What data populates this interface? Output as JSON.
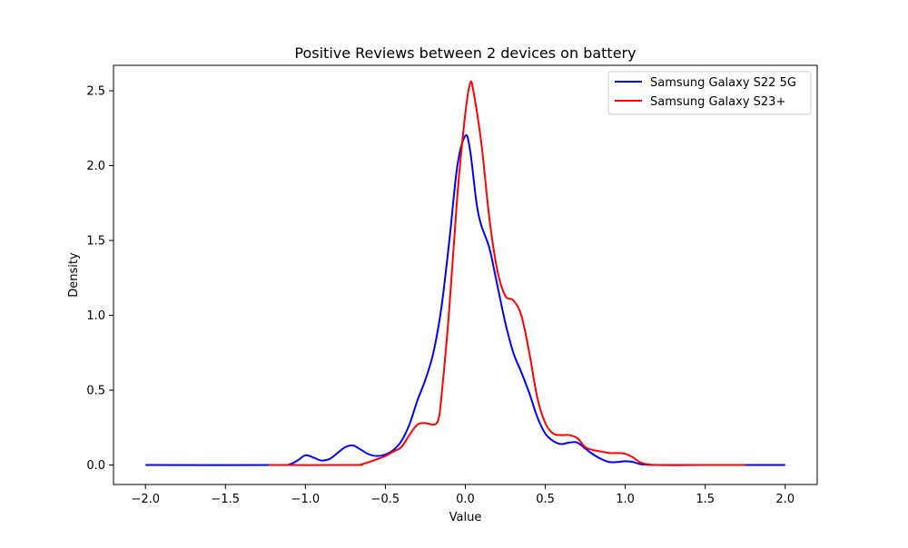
{
  "chart_data": {
    "type": "line",
    "title": "Positive Reviews between 2 devices on battery",
    "xlabel": "Value",
    "ylabel": "Density",
    "xlim": [
      -2.2,
      2.2
    ],
    "ylim": [
      -0.13,
      2.67
    ],
    "xticks": [
      -2.0,
      -1.5,
      -1.0,
      -0.5,
      0.0,
      0.5,
      1.0,
      1.5,
      2.0
    ],
    "xtick_labels": [
      "−2.0",
      "−1.5",
      "−1.0",
      "−0.5",
      "0.0",
      "0.5",
      "1.0",
      "1.5",
      "2.0"
    ],
    "yticks": [
      0.0,
      0.5,
      1.0,
      1.5,
      2.0,
      2.5
    ],
    "ytick_labels": [
      "0.0",
      "0.5",
      "1.0",
      "1.5",
      "2.0",
      "2.5"
    ],
    "grid": false,
    "legend_position": "top-right",
    "series": [
      {
        "name": "Samsung Galaxy S22 5G",
        "color": "#0000ff",
        "x": [
          -2.0,
          -1.2,
          -1.1,
          -1.05,
          -1.0,
          -0.95,
          -0.9,
          -0.85,
          -0.8,
          -0.75,
          -0.7,
          -0.65,
          -0.6,
          -0.55,
          -0.5,
          -0.45,
          -0.4,
          -0.35,
          -0.3,
          -0.25,
          -0.2,
          -0.15,
          -0.1,
          -0.05,
          0.0,
          0.03,
          0.07,
          0.1,
          0.15,
          0.2,
          0.25,
          0.3,
          0.35,
          0.4,
          0.45,
          0.5,
          0.55,
          0.6,
          0.65,
          0.7,
          0.75,
          0.8,
          0.85,
          0.9,
          0.95,
          1.0,
          1.05,
          1.1,
          1.2,
          1.5,
          2.0
        ],
        "y": [
          0.0,
          0.0,
          0.005,
          0.03,
          0.065,
          0.05,
          0.03,
          0.04,
          0.08,
          0.12,
          0.13,
          0.1,
          0.07,
          0.06,
          0.07,
          0.1,
          0.16,
          0.27,
          0.43,
          0.57,
          0.75,
          1.05,
          1.5,
          2.0,
          2.2,
          2.1,
          1.75,
          1.6,
          1.45,
          1.2,
          0.95,
          0.75,
          0.62,
          0.48,
          0.32,
          0.21,
          0.16,
          0.14,
          0.15,
          0.15,
          0.11,
          0.07,
          0.04,
          0.02,
          0.02,
          0.025,
          0.02,
          0.005,
          0.0,
          0.0,
          0.0
        ]
      },
      {
        "name": "Samsung Galaxy S23+",
        "color": "#ff0000",
        "x": [
          -1.23,
          -0.7,
          -0.65,
          -0.6,
          -0.55,
          -0.5,
          -0.45,
          -0.4,
          -0.35,
          -0.3,
          -0.25,
          -0.2,
          -0.17,
          -0.15,
          -0.1,
          -0.05,
          0.0,
          0.03,
          0.05,
          0.1,
          0.15,
          0.2,
          0.25,
          0.3,
          0.35,
          0.4,
          0.45,
          0.5,
          0.55,
          0.6,
          0.65,
          0.7,
          0.75,
          0.8,
          0.85,
          0.9,
          0.95,
          1.0,
          1.05,
          1.1,
          1.2,
          1.5,
          1.75
        ],
        "y": [
          0.0,
          0.0,
          0.005,
          0.02,
          0.04,
          0.06,
          0.09,
          0.12,
          0.2,
          0.27,
          0.28,
          0.27,
          0.3,
          0.45,
          1.05,
          1.8,
          2.35,
          2.55,
          2.5,
          2.15,
          1.65,
          1.3,
          1.13,
          1.1,
          1.0,
          0.75,
          0.45,
          0.28,
          0.21,
          0.2,
          0.2,
          0.18,
          0.12,
          0.1,
          0.09,
          0.08,
          0.08,
          0.075,
          0.05,
          0.015,
          0.0,
          0.0,
          0.0
        ]
      }
    ]
  }
}
